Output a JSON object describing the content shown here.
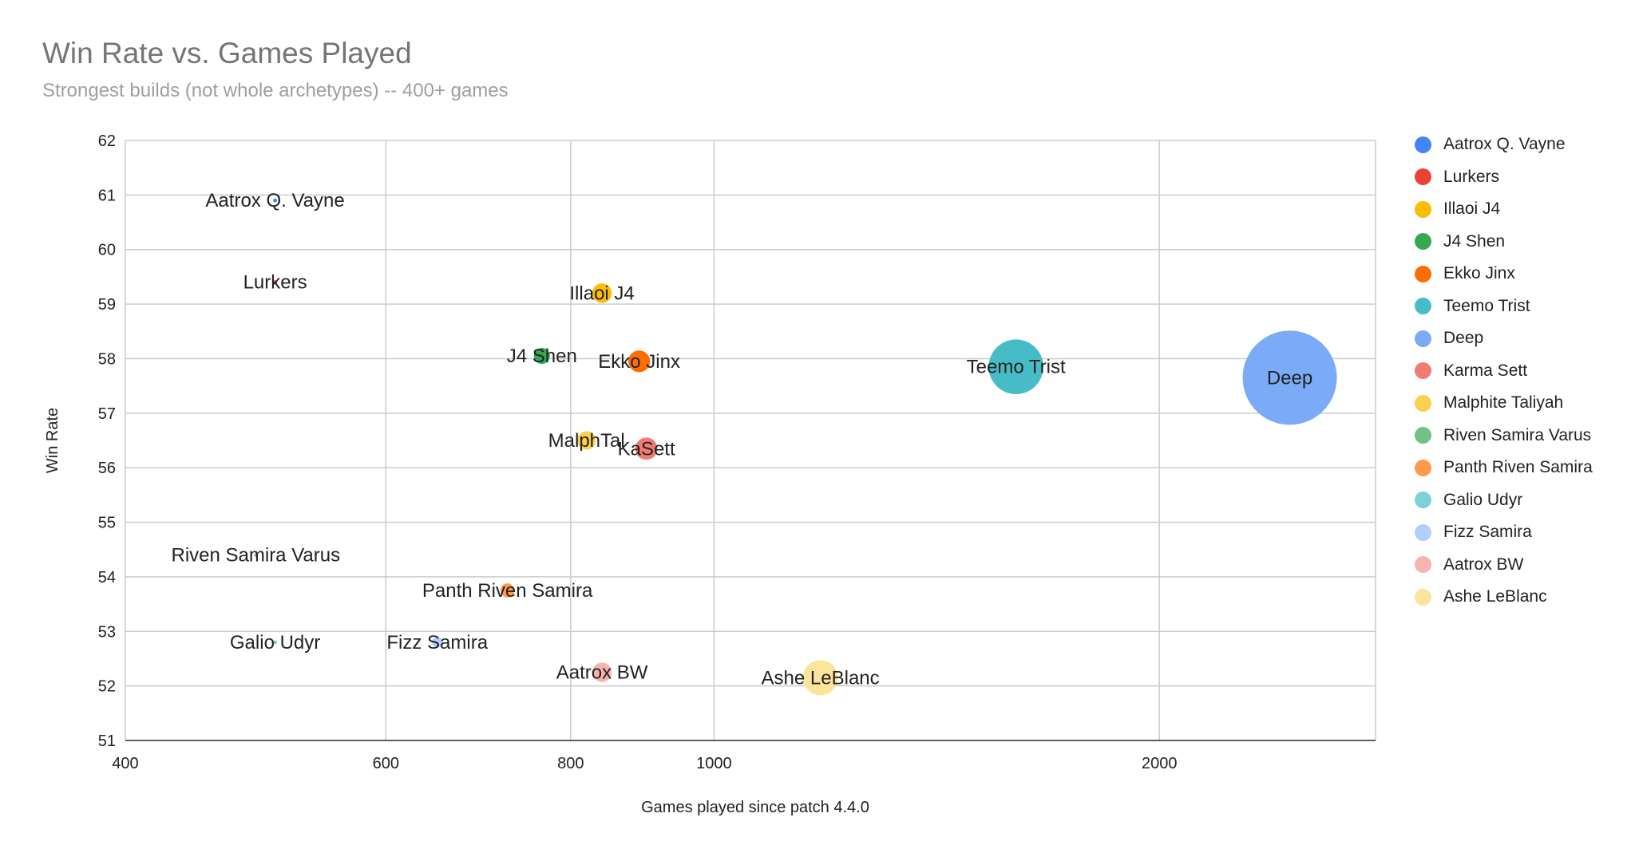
{
  "chart_data": {
    "type": "bubble",
    "title": "Win Rate vs. Games Played",
    "subtitle": "Strongest builds (not whole archetypes) -- 400+ games",
    "xlabel": "Games played since patch 4.4.0",
    "ylabel": "Win Rate",
    "x_scale": "log",
    "xlim": [
      400,
      2800
    ],
    "ylim": [
      51,
      62
    ],
    "x_ticks": [
      "400",
      "600",
      "800",
      "1000",
      "2000"
    ],
    "y_ticks": [
      "51",
      "52",
      "53",
      "54",
      "55",
      "56",
      "57",
      "58",
      "59",
      "60",
      "61",
      "62"
    ],
    "legend_position": "right",
    "series": [
      {
        "name": "Aatrox Q. Vayne",
        "x": 505,
        "y": 60.9,
        "size": 505,
        "color": "#4285f4",
        "label": "Aatrox Q. Vayne"
      },
      {
        "name": "Lurkers",
        "x": 505,
        "y": 59.4,
        "size": 505,
        "color": "#ea4335",
        "label": "Lurkers"
      },
      {
        "name": "Illaoi J4",
        "x": 840,
        "y": 59.2,
        "size": 840,
        "color": "#fbbc04",
        "label": "Illaoi J4"
      },
      {
        "name": "J4 Shen",
        "x": 765,
        "y": 58.05,
        "size": 765,
        "color": "#34a853",
        "label": "J4 Shen"
      },
      {
        "name": "Ekko Jinx",
        "x": 890,
        "y": 57.95,
        "size": 890,
        "color": "#ff6d01",
        "label": "Ekko Jinx"
      },
      {
        "name": "Teemo Trist",
        "x": 1600,
        "y": 57.85,
        "size": 1600,
        "color": "#46bdc6",
        "label": "Teemo Trist"
      },
      {
        "name": "Deep",
        "x": 2450,
        "y": 57.65,
        "size": 2450,
        "color": "#7baaf7",
        "label": "Deep"
      },
      {
        "name": "Karma Sett",
        "x": 900,
        "y": 56.35,
        "size": 900,
        "color": "#f07b72",
        "label": "KaSett"
      },
      {
        "name": "Malphite Taliyah",
        "x": 820,
        "y": 56.5,
        "size": 820,
        "color": "#fcd04f",
        "label": "MalphTal"
      },
      {
        "name": "Riven Samira Varus",
        "x": 490,
        "y": 54.4,
        "size": 490,
        "color": "#71c287",
        "label": "Riven Samira Varus"
      },
      {
        "name": "Panth Riven Samira",
        "x": 725,
        "y": 53.75,
        "size": 725,
        "color": "#ff994d",
        "label": "Panth Riven Samira"
      },
      {
        "name": "Galio Udyr",
        "x": 505,
        "y": 52.8,
        "size": 505,
        "color": "#7ed1d7",
        "label": "Galio Udyr"
      },
      {
        "name": "Fizz Samira",
        "x": 650,
        "y": 52.8,
        "size": 650,
        "color": "#b3cefb",
        "label": "Fizz Samira"
      },
      {
        "name": "Aatrox BW",
        "x": 840,
        "y": 52.25,
        "size": 840,
        "color": "#f7b4ae",
        "label": "Aatrox BW"
      },
      {
        "name": "Ashe LeBlanc",
        "x": 1180,
        "y": 52.15,
        "size": 1180,
        "color": "#fde49b",
        "label": "Ashe LeBlanc"
      }
    ]
  }
}
